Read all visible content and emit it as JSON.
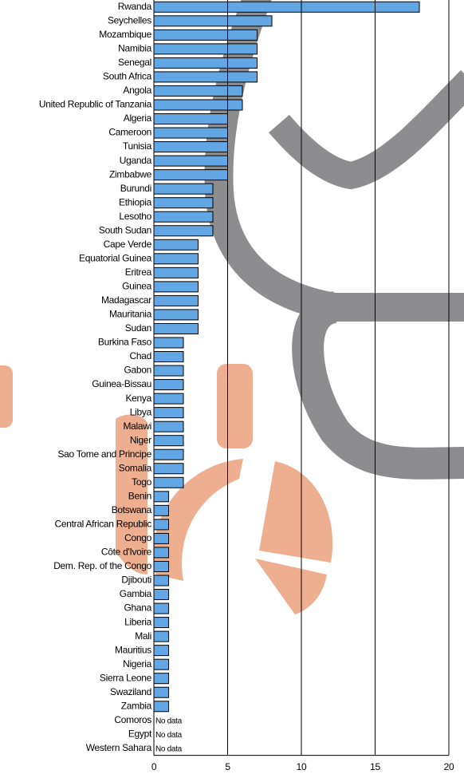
{
  "chart_data": {
    "type": "bar",
    "orientation": "horizontal",
    "categories": [
      "Rwanda",
      "Seychelles",
      "Mozambique",
      "Namibia",
      "Senegal",
      "South Africa",
      "Angola",
      "United Republic of Tanzania",
      "Algeria",
      "Cameroon",
      "Tunisia",
      "Uganda",
      "Zimbabwe",
      "Burundi",
      "Ethiopia",
      "Lesotho",
      "South Sudan",
      "Cape Verde",
      "Equatorial Guinea",
      "Eritrea",
      "Guinea",
      "Madagascar",
      "Mauritania",
      "Sudan",
      "Burkina Faso",
      "Chad",
      "Gabon",
      "Guinea-Bissau",
      "Kenya",
      "Libya",
      "Malawi",
      "Niger",
      "Sao Tome and Principe",
      "Somalia",
      "Togo",
      "Benin",
      "Botswana",
      "Central African Republic",
      "Congo",
      "Côte d'Ivoire",
      "Dem. Rep. of the Congo",
      "Djibouti",
      "Gambia",
      "Ghana",
      "Liberia",
      "Mali",
      "Mauritius",
      "Nigeria",
      "Sierra Leone",
      "Swaziland",
      "Zambia",
      "Comoros",
      "Egypt",
      "Western Sahara"
    ],
    "values": [
      18,
      8,
      7,
      7,
      7,
      7,
      6,
      6,
      5,
      5,
      5,
      5,
      5,
      4,
      4,
      4,
      4,
      3,
      3,
      3,
      3,
      3,
      3,
      3,
      2,
      2,
      2,
      2,
      2,
      2,
      2,
      2,
      2,
      2,
      2,
      1,
      1,
      1,
      1,
      1,
      1,
      1,
      1,
      1,
      1,
      1,
      1,
      1,
      1,
      1,
      1,
      null,
      null,
      null
    ],
    "value_labels": [
      null,
      null,
      null,
      null,
      null,
      null,
      null,
      null,
      null,
      null,
      null,
      null,
      null,
      null,
      null,
      null,
      null,
      null,
      null,
      null,
      null,
      null,
      null,
      null,
      null,
      null,
      null,
      null,
      null,
      null,
      null,
      null,
      null,
      null,
      null,
      null,
      null,
      null,
      null,
      null,
      null,
      null,
      null,
      null,
      null,
      null,
      null,
      null,
      null,
      null,
      null,
      "No data",
      "No data",
      "No data"
    ],
    "color": "#62a6e3",
    "xlim": [
      0,
      20
    ],
    "xticks": [
      0,
      5,
      10,
      15,
      20
    ],
    "grid": true
  }
}
